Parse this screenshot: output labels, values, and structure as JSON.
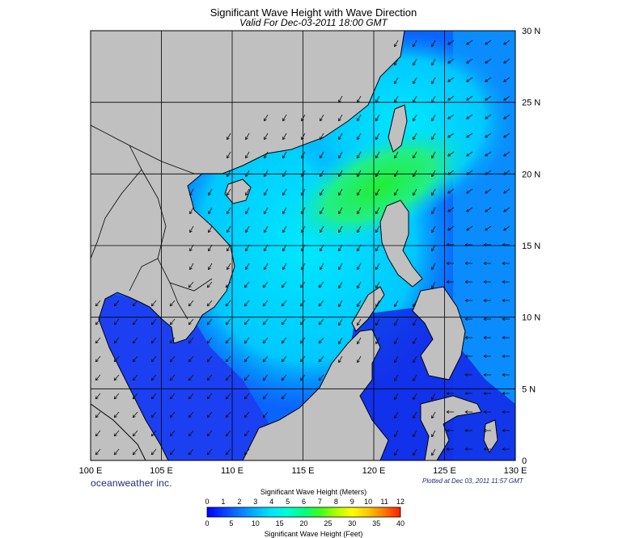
{
  "title": "Significant Wave Height with Wave Direction",
  "subtitle": "Valid For Dec-03-2011 18:00 GMT",
  "brand": "oceanweather inc.",
  "plotted": "Plotted at Dec 03, 2011 11:57 GMT",
  "lat_labels": [
    "30 N",
    "25 N",
    "20 N",
    "15 N",
    "10 N",
    "5 N",
    "0"
  ],
  "lon_labels": [
    "100 E",
    "105 E",
    "110 E",
    "115 E",
    "120 E",
    "125 E",
    "130 E"
  ],
  "colorbar": {
    "title_meters": "Significant Wave Height (Meters)",
    "title_feet": "Significant Wave Height (Feet)",
    "meters_ticks": [
      "0",
      "1",
      "2",
      "3",
      "4",
      "5",
      "6",
      "7",
      "8",
      "9",
      "10",
      "11",
      "12"
    ],
    "feet_ticks": [
      "0",
      "5",
      "10",
      "15",
      "20",
      "25",
      "30",
      "35",
      "40"
    ],
    "colors": [
      "#0000ff",
      "#0a3cff",
      "#0a78ff",
      "#00b4ff",
      "#00e6ff",
      "#00ffd2",
      "#00ff82",
      "#3cff1e",
      "#aaff00",
      "#ffff00",
      "#ffc800",
      "#ff7800",
      "#ff1e00"
    ]
  },
  "colors": {
    "land": "#c0c0c0",
    "deep_blue": "#1428e6",
    "cyan": "#00ccff",
    "green": "#22ee44"
  }
}
